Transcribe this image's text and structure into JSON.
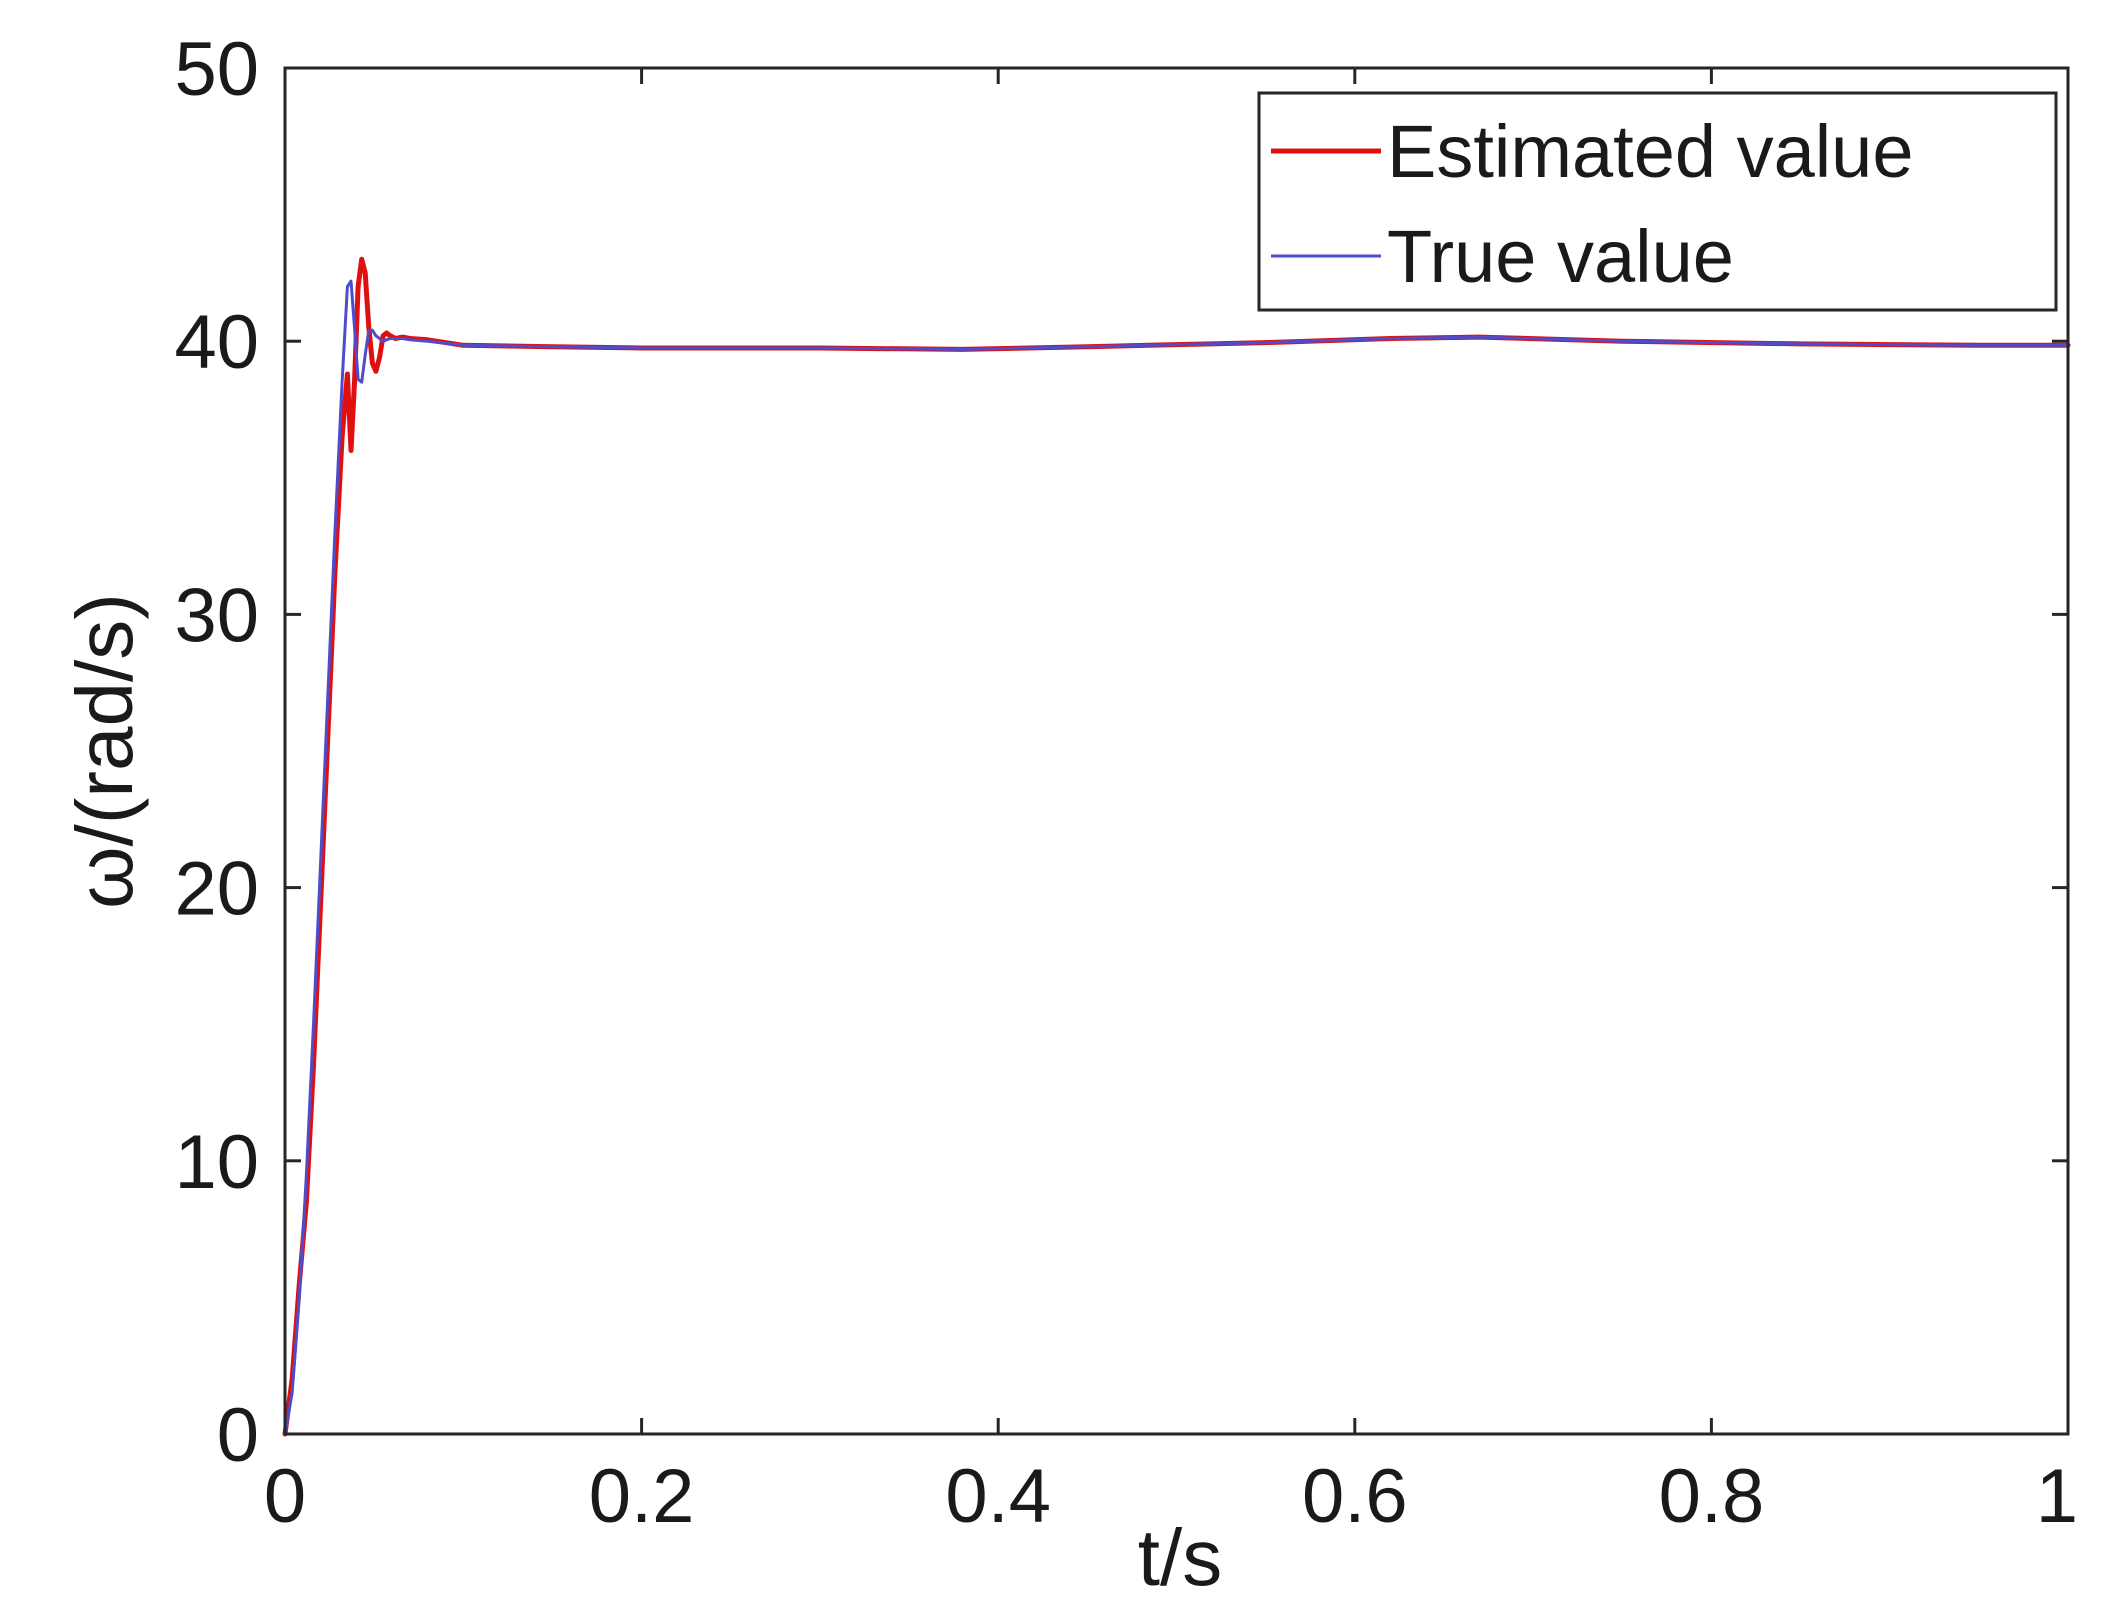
{
  "chart_data": {
    "type": "line",
    "title": "",
    "xlabel": "t/s",
    "ylabel": "ω/(rad/s)",
    "xlim": [
      0,
      1
    ],
    "ylim": [
      0,
      50
    ],
    "xticks": [
      0,
      0.2,
      0.4,
      0.6,
      0.8,
      1
    ],
    "yticks": [
      0,
      10,
      20,
      30,
      40,
      50
    ],
    "xtick_labels": [
      "0",
      "0.2",
      "0.4",
      "0.6",
      "0.8",
      "1"
    ],
    "ytick_labels": [
      "0",
      "10",
      "20",
      "30",
      "40",
      "50"
    ],
    "grid": false,
    "legend": {
      "position": "top-right",
      "entries": [
        "Estimated value",
        "True value"
      ]
    },
    "series": [
      {
        "name": "Estimated value",
        "color": "#e01010",
        "x": [
          0,
          0.004,
          0.008,
          0.012,
          0.016,
          0.02,
          0.024,
          0.028,
          0.032,
          0.035,
          0.037,
          0.039,
          0.041,
          0.043,
          0.045,
          0.047,
          0.049,
          0.051,
          0.053,
          0.055,
          0.057,
          0.059,
          0.062,
          0.066,
          0.07,
          0.08,
          0.1,
          0.15,
          0.2,
          0.3,
          0.38,
          0.45,
          0.55,
          0.62,
          0.67,
          0.75,
          0.85,
          0.95,
          1.0
        ],
        "y": [
          0,
          2.0,
          5.5,
          8.5,
          13.5,
          19.5,
          25.5,
          31.5,
          36.5,
          38.8,
          36.0,
          38.5,
          42.0,
          43.0,
          42.5,
          40.5,
          39.2,
          38.9,
          39.4,
          40.2,
          40.3,
          40.2,
          40.1,
          40.15,
          40.1,
          40.05,
          39.85,
          39.8,
          39.75,
          39.75,
          39.7,
          39.8,
          39.95,
          40.1,
          40.15,
          40.0,
          39.9,
          39.85,
          39.85
        ]
      },
      {
        "name": "True value",
        "color": "#4d4dcc",
        "x": [
          0,
          0.004,
          0.008,
          0.012,
          0.016,
          0.02,
          0.024,
          0.028,
          0.032,
          0.035,
          0.037,
          0.039,
          0.041,
          0.043,
          0.045,
          0.047,
          0.049,
          0.051,
          0.053,
          0.055,
          0.057,
          0.059,
          0.062,
          0.066,
          0.07,
          0.08,
          0.1,
          0.15,
          0.2,
          0.3,
          0.38,
          0.45,
          0.55,
          0.62,
          0.67,
          0.75,
          0.85,
          0.95,
          1.0
        ],
        "y": [
          0,
          1.5,
          5.0,
          9.5,
          15.0,
          21.0,
          27.0,
          33.0,
          38.5,
          42.0,
          42.2,
          40.5,
          38.6,
          38.5,
          39.5,
          40.4,
          40.4,
          40.2,
          40.1,
          40.0,
          40.05,
          40.1,
          40.1,
          40.1,
          40.05,
          40.0,
          39.85,
          39.8,
          39.75,
          39.75,
          39.7,
          39.8,
          39.95,
          40.1,
          40.15,
          40.0,
          39.9,
          39.85,
          39.85
        ]
      }
    ]
  }
}
